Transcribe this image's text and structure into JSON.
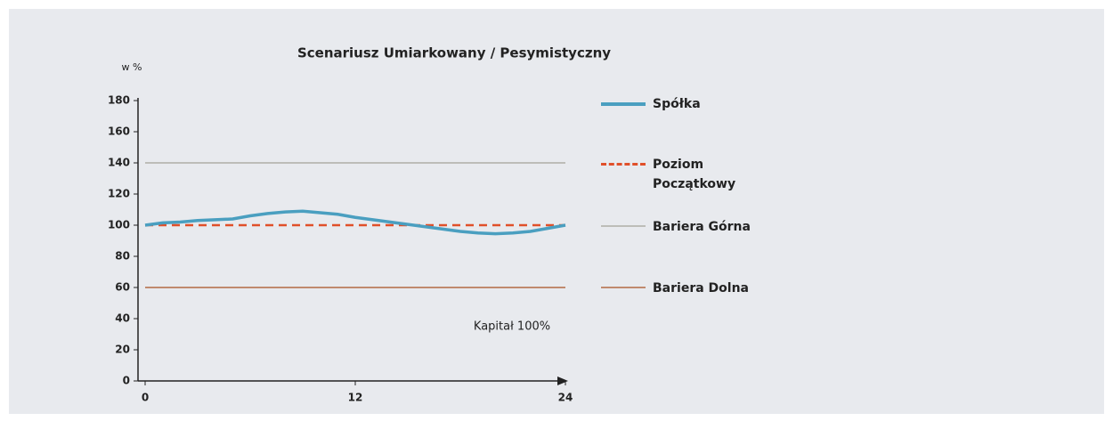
{
  "chart_data": {
    "type": "line",
    "title": "Scenariusz Umiarkowany / Pesymistyczny",
    "ylabel": "w %",
    "annotation": "Kapitał 100%",
    "xlim": [
      0,
      24
    ],
    "xticks": [
      0,
      12,
      24
    ],
    "ylim": [
      0,
      180
    ],
    "yticks": [
      0,
      20,
      40,
      60,
      80,
      100,
      120,
      140,
      160,
      180
    ],
    "grid": false,
    "legend": "right",
    "series": [
      {
        "name": "Spółka",
        "color": "#4a9fc0",
        "style": "solid",
        "x": [
          0,
          1,
          2,
          3,
          4,
          5,
          6,
          7,
          8,
          9,
          10,
          11,
          12,
          13,
          14,
          15,
          16,
          17,
          18,
          19,
          20,
          21,
          22,
          23,
          24
        ],
        "values": [
          100,
          101.5,
          102,
          103,
          103.5,
          104,
          106,
          107.5,
          108.5,
          109,
          108,
          107,
          105,
          103.5,
          102,
          100.5,
          99,
          97.5,
          96,
          95,
          94.5,
          95,
          96,
          98,
          100
        ]
      },
      {
        "name": "Poziom Początkowy",
        "color": "#e0502a",
        "style": "dashed",
        "x": [
          0,
          24
        ],
        "values": [
          100,
          100
        ]
      },
      {
        "name": "Bariera Górna",
        "color": "#bdbdb8",
        "style": "solid",
        "x": [
          0,
          24
        ],
        "values": [
          140,
          140
        ]
      },
      {
        "name": "Bariera Dolna",
        "color": "#c08a6e",
        "style": "solid",
        "x": [
          0,
          24
        ],
        "values": [
          60,
          60
        ]
      }
    ]
  }
}
